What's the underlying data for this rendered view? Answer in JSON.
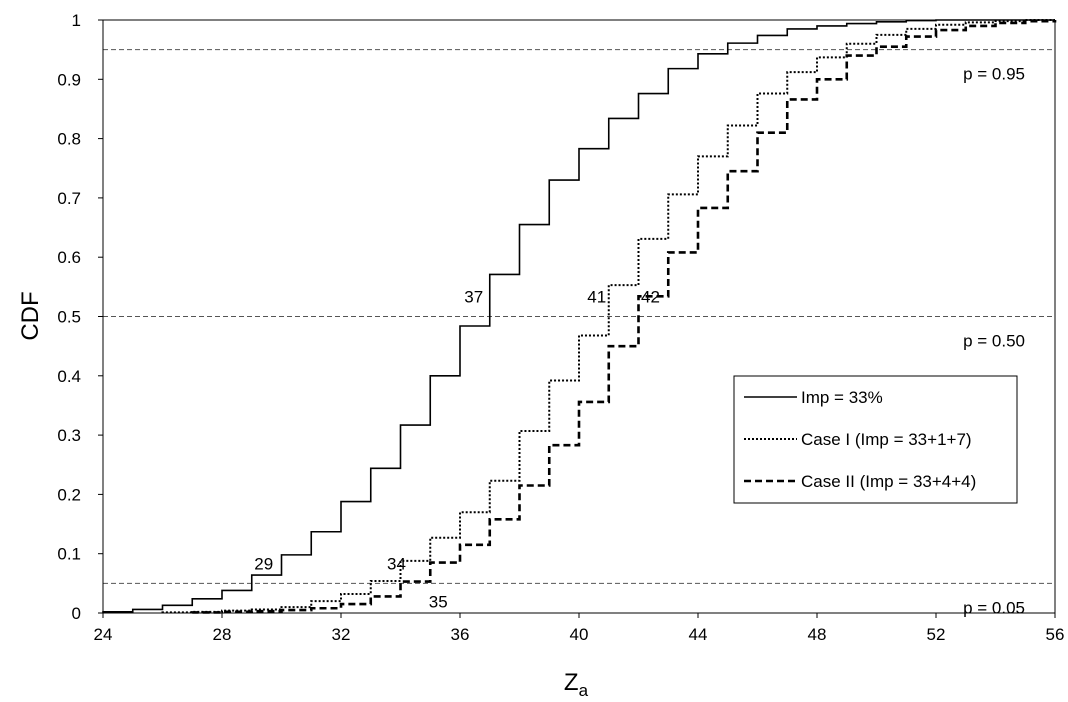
{
  "chart_data": {
    "type": "line",
    "xlabel": "Z",
    "xlabel_sub": "a",
    "ylabel": "CDF",
    "xlim": [
      24,
      56
    ],
    "ylim": [
      0,
      1
    ],
    "x_ticks": [
      "24",
      "28",
      "32",
      "36",
      "40",
      "44",
      "48",
      "52",
      "56"
    ],
    "y_ticks": [
      "0",
      "0.1",
      "0.2",
      "0.3",
      "0.4",
      "0.5",
      "0.6",
      "0.7",
      "0.8",
      "0.9",
      "1"
    ],
    "grid": false,
    "legend_position": "lower-right",
    "series": [
      {
        "name": "Imp = 33%",
        "style": "solid",
        "steps": [
          [
            24,
            0.002
          ],
          [
            25,
            0.006
          ],
          [
            26,
            0.013
          ],
          [
            27,
            0.024
          ],
          [
            28,
            0.038
          ],
          [
            29,
            0.064
          ],
          [
            30,
            0.098
          ],
          [
            31,
            0.137
          ],
          [
            32,
            0.188
          ],
          [
            33,
            0.244
          ],
          [
            34,
            0.317
          ],
          [
            35,
            0.4
          ],
          [
            36,
            0.484
          ],
          [
            37,
            0.571
          ],
          [
            38,
            0.655
          ],
          [
            39,
            0.73
          ],
          [
            40,
            0.783
          ],
          [
            41,
            0.834
          ],
          [
            42,
            0.876
          ],
          [
            43,
            0.918
          ],
          [
            44,
            0.943
          ],
          [
            45,
            0.961
          ],
          [
            46,
            0.974
          ],
          [
            47,
            0.985
          ],
          [
            48,
            0.99
          ],
          [
            49,
            0.994
          ],
          [
            50,
            0.997
          ],
          [
            51,
            0.999
          ],
          [
            52,
            1.0
          ]
        ]
      },
      {
        "name": "Case I (Imp = 33+1+7)",
        "style": "dotted",
        "steps": [
          [
            26,
            0.001
          ],
          [
            27,
            0.002
          ],
          [
            28,
            0.004
          ],
          [
            29,
            0.006
          ],
          [
            30,
            0.01
          ],
          [
            31,
            0.02
          ],
          [
            32,
            0.032
          ],
          [
            33,
            0.054
          ],
          [
            34,
            0.088
          ],
          [
            35,
            0.127
          ],
          [
            36,
            0.17
          ],
          [
            37,
            0.223
          ],
          [
            38,
            0.307
          ],
          [
            39,
            0.392
          ],
          [
            40,
            0.468
          ],
          [
            41,
            0.553
          ],
          [
            42,
            0.631
          ],
          [
            43,
            0.706
          ],
          [
            44,
            0.77
          ],
          [
            45,
            0.822
          ],
          [
            46,
            0.876
          ],
          [
            47,
            0.912
          ],
          [
            48,
            0.937
          ],
          [
            49,
            0.96
          ],
          [
            50,
            0.975
          ],
          [
            51,
            0.985
          ],
          [
            52,
            0.992
          ],
          [
            53,
            0.996
          ],
          [
            54,
            0.998
          ],
          [
            55,
            1.0
          ]
        ]
      },
      {
        "name": "Case II (Imp = 33+4+4)",
        "style": "dashed",
        "steps": [
          [
            27,
            0.001
          ],
          [
            28,
            0.002
          ],
          [
            29,
            0.003
          ],
          [
            30,
            0.005
          ],
          [
            31,
            0.008
          ],
          [
            32,
            0.015
          ],
          [
            33,
            0.028
          ],
          [
            34,
            0.053
          ],
          [
            35,
            0.085
          ],
          [
            36,
            0.115
          ],
          [
            37,
            0.158
          ],
          [
            38,
            0.215
          ],
          [
            39,
            0.283
          ],
          [
            40,
            0.356
          ],
          [
            41,
            0.45
          ],
          [
            42,
            0.534
          ],
          [
            43,
            0.608
          ],
          [
            44,
            0.683
          ],
          [
            45,
            0.745
          ],
          [
            46,
            0.81
          ],
          [
            47,
            0.866
          ],
          [
            48,
            0.9
          ],
          [
            49,
            0.94
          ],
          [
            50,
            0.955
          ],
          [
            51,
            0.972
          ],
          [
            52,
            0.983
          ],
          [
            53,
            0.99
          ],
          [
            54,
            0.995
          ],
          [
            55,
            0.998
          ],
          [
            56,
            1.0
          ]
        ]
      }
    ],
    "reference_lines": [
      {
        "y": 0.95,
        "label": "p = 0.95"
      },
      {
        "y": 0.5,
        "label": "p = 0.50"
      },
      {
        "y": 0.05,
        "label": "p = 0.05"
      }
    ],
    "annotations": [
      {
        "text": "37",
        "x": 37,
        "y": 0.5
      },
      {
        "text": "41",
        "x": 41,
        "y": 0.5
      },
      {
        "text": "42",
        "x": 42,
        "y": 0.5
      },
      {
        "text": "29",
        "x": 29,
        "y": 0.05
      },
      {
        "text": "34",
        "x": 34,
        "y": 0.05
      },
      {
        "text": "35",
        "x": 35,
        "y": 0.05
      }
    ]
  }
}
